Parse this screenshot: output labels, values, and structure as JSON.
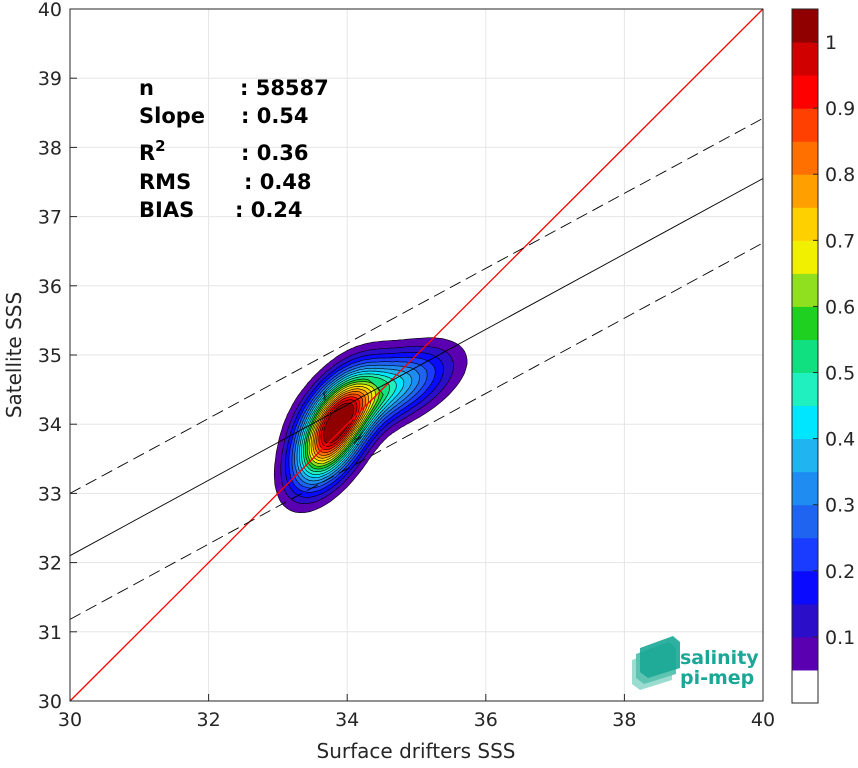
{
  "chart_data": {
    "type": "scatter",
    "subtype": "density-contour",
    "xlabel": "Surface drifters SSS",
    "ylabel": "Satellite SSS",
    "xlim": [
      30,
      40
    ],
    "ylim": [
      30,
      40
    ],
    "xticks": [
      30,
      32,
      34,
      36,
      38,
      40
    ],
    "yticks": [
      30,
      31,
      32,
      33,
      34,
      35,
      36,
      37,
      38,
      39,
      40
    ],
    "grid": true,
    "stats": [
      {
        "label": "n",
        "value": ": 58587"
      },
      {
        "label": "Slope",
        "value": ": 0.54"
      },
      {
        "label": "R",
        "sup": "2",
        "value": ": 0.36"
      },
      {
        "label": "RMS",
        "value": ": 0.48"
      },
      {
        "label": "BIAS",
        "value": ": 0.24"
      }
    ],
    "lines": [
      {
        "kind": "identity",
        "color": "#ff0000",
        "style": "solid",
        "x": [
          30,
          40
        ],
        "y": [
          30,
          40
        ]
      },
      {
        "kind": "regression",
        "color": "#000000",
        "style": "solid",
        "x": [
          30,
          40
        ],
        "y": [
          32.1,
          37.55
        ]
      },
      {
        "kind": "upper-bound",
        "color": "#000000",
        "style": "dashed",
        "x": [
          30,
          40
        ],
        "y": [
          33.0,
          38.42
        ]
      },
      {
        "kind": "lower-bound",
        "color": "#000000",
        "style": "dashed",
        "x": [
          30,
          40
        ],
        "y": [
          31.18,
          36.62
        ]
      }
    ],
    "density_peaks": [
      {
        "x": 33.8,
        "y": 33.9,
        "level": 1.0
      },
      {
        "x": 34.55,
        "y": 34.5,
        "level": 0.45
      }
    ],
    "colorbar": {
      "ticks": [
        "0.1",
        "0.2",
        "0.3",
        "0.4",
        "0.5",
        "0.6",
        "0.7",
        "0.8",
        "0.9",
        "1"
      ],
      "levels": [
        0,
        0.05,
        0.1,
        0.15,
        0.2,
        0.25,
        0.3,
        0.35,
        0.4,
        0.45,
        0.5,
        0.55,
        0.6,
        0.65,
        0.7,
        0.75,
        0.8,
        0.85,
        0.9,
        0.95,
        1.0
      ],
      "colors": [
        "#ffffff",
        "#5a00b0",
        "#2b0ec8",
        "#0a0aff",
        "#1a3cff",
        "#1e64f0",
        "#1e8cf0",
        "#20b4f0",
        "#00e6ff",
        "#20f0c0",
        "#10e080",
        "#20d020",
        "#90e020",
        "#f0f000",
        "#ffd000",
        "#ffa000",
        "#ff7000",
        "#ff4000",
        "#ff0000",
        "#d00000",
        "#900000"
      ]
    }
  },
  "logo": {
    "line1": "salinity",
    "line2": "pi-mep",
    "color": "#1aa796"
  }
}
